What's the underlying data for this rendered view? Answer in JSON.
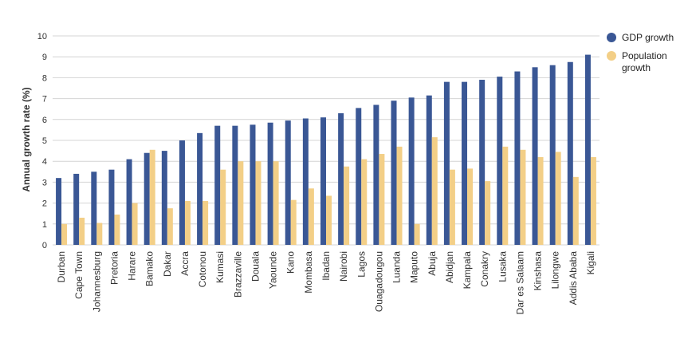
{
  "chart_data": {
    "type": "bar",
    "ylabel": "Annual growth rate (%)",
    "xlabel": "",
    "ylim": [
      0,
      10
    ],
    "yticks": [
      0,
      1,
      2,
      3,
      4,
      5,
      6,
      7,
      8,
      9,
      10
    ],
    "grid": true,
    "legend_position": "top-right",
    "categories": [
      "Durban",
      "Cape Town",
      "Johannesburg",
      "Pretoria",
      "Harare",
      "Bamako",
      "Dakar",
      "Accra",
      "Cotonou",
      "Kumasi",
      "Brazzaville",
      "Douala",
      "Yaounde",
      "Kano",
      "Mombasa",
      "Ibadan",
      "Nairobi",
      "Lagos",
      "Ouagadougou",
      "Luanda",
      "Maputo",
      "Abuja",
      "Abidjan",
      "Kampala",
      "Conakry",
      "Lusaka",
      "Dar es Salaam",
      "Kinshasa",
      "Lilongwe",
      "Addis Ababa",
      "Kigali"
    ],
    "series": [
      {
        "name": "GDP growth",
        "color": "#3a5795",
        "values": [
          3.2,
          3.4,
          3.5,
          3.6,
          4.1,
          4.4,
          4.5,
          5.0,
          5.35,
          5.7,
          5.7,
          5.75,
          5.85,
          5.95,
          6.05,
          6.1,
          6.3,
          6.55,
          6.7,
          6.9,
          7.05,
          7.15,
          7.8,
          7.8,
          7.9,
          8.05,
          8.3,
          8.5,
          8.6,
          8.75,
          9.1
        ]
      },
      {
        "name": "Population growth",
        "color": "#f3cf87",
        "values": [
          1.0,
          1.3,
          1.05,
          1.45,
          2.0,
          4.55,
          1.75,
          2.1,
          2.1,
          3.6,
          4.0,
          4.0,
          4.0,
          2.15,
          2.7,
          2.35,
          3.75,
          4.1,
          4.35,
          4.7,
          1.0,
          5.15,
          3.6,
          3.65,
          3.05,
          4.7,
          4.55,
          4.2,
          4.45,
          3.25,
          4.2
        ]
      }
    ]
  }
}
